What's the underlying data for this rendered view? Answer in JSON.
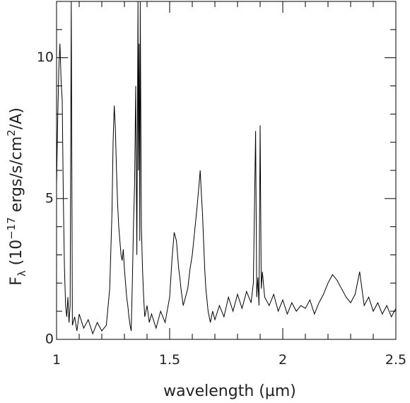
{
  "chart_data": {
    "type": "line",
    "xlabel": "wavelength (µm)",
    "ylabel_parts": {
      "f": "F",
      "lambda_sub": "λ",
      "open": " (10",
      "exp": "−17",
      "mid": " ergs/s/cm",
      "exp2": "2",
      "close": "/A)"
    },
    "xlim": [
      1.0,
      2.5
    ],
    "ylim": [
      0,
      12
    ],
    "x_ticks": [
      1,
      1.5,
      2,
      2.5
    ],
    "x_tick_labels": [
      "1",
      "1.5",
      "2",
      "2.5"
    ],
    "y_ticks": [
      0,
      5,
      10
    ],
    "y_tick_labels": [
      "0",
      "5",
      "10"
    ],
    "grid": false,
    "legend": "none",
    "line_color": "#000000",
    "series": [
      {
        "x": [
          1.0,
          1.005,
          1.01,
          1.015,
          1.02,
          1.025,
          1.03,
          1.035,
          1.04,
          1.045,
          1.05,
          1.055,
          1.06,
          1.065,
          1.07,
          1.08,
          1.09,
          1.1,
          1.12,
          1.14,
          1.16,
          1.18,
          1.2,
          1.22,
          1.235,
          1.245,
          1.25,
          1.255,
          1.26,
          1.265,
          1.27,
          1.275,
          1.28,
          1.285,
          1.29,
          1.295,
          1.3,
          1.305,
          1.31,
          1.315,
          1.32,
          1.325,
          1.33,
          1.335,
          1.34,
          1.345,
          1.35,
          1.355,
          1.36,
          1.362,
          1.365,
          1.368,
          1.37,
          1.375,
          1.38,
          1.385,
          1.39,
          1.4,
          1.41,
          1.42,
          1.44,
          1.46,
          1.48,
          1.5,
          1.51,
          1.52,
          1.53,
          1.535,
          1.54,
          1.545,
          1.55,
          1.56,
          1.57,
          1.58,
          1.59,
          1.6,
          1.61,
          1.62,
          1.63,
          1.635,
          1.64,
          1.645,
          1.65,
          1.655,
          1.66,
          1.67,
          1.68,
          1.69,
          1.7,
          1.72,
          1.74,
          1.76,
          1.78,
          1.8,
          1.82,
          1.84,
          1.86,
          1.87,
          1.88,
          1.885,
          1.89,
          1.895,
          1.9,
          1.905,
          1.91,
          1.92,
          1.94,
          1.96,
          1.98,
          2.0,
          2.02,
          2.04,
          2.06,
          2.08,
          2.1,
          2.12,
          2.14,
          2.16,
          2.18,
          2.2,
          2.22,
          2.24,
          2.26,
          2.28,
          2.3,
          2.32,
          2.34,
          2.36,
          2.38,
          2.4,
          2.42,
          2.44,
          2.46,
          2.48,
          2.5
        ],
        "y": [
          5.5,
          7.8,
          9.6,
          10.5,
          9.2,
          8.5,
          5.0,
          2.5,
          1.2,
          0.8,
          1.5,
          0.6,
          1.2,
          12.0,
          0.5,
          0.8,
          0.3,
          0.9,
          0.4,
          0.7,
          0.2,
          0.6,
          0.3,
          0.5,
          1.8,
          4.5,
          7.0,
          8.3,
          7.5,
          6.0,
          4.8,
          4.0,
          3.5,
          3.0,
          2.8,
          3.2,
          2.5,
          2.0,
          1.5,
          1.2,
          0.8,
          0.5,
          0.3,
          2.0,
          4.0,
          5.5,
          9.0,
          3.0,
          12.0,
          6.0,
          10.5,
          3.5,
          12.0,
          4.0,
          2.5,
          1.5,
          0.8,
          1.2,
          0.6,
          0.9,
          0.4,
          1.0,
          0.6,
          1.5,
          2.8,
          3.8,
          3.5,
          3.0,
          2.5,
          2.2,
          1.8,
          1.2,
          1.5,
          1.8,
          2.5,
          3.0,
          3.8,
          4.6,
          5.5,
          6.0,
          5.2,
          4.5,
          3.5,
          2.5,
          1.8,
          1.0,
          0.6,
          1.0,
          0.7,
          1.2,
          0.8,
          1.5,
          1.0,
          1.6,
          1.1,
          1.7,
          1.3,
          2.0,
          7.4,
          1.5,
          2.2,
          1.2,
          7.6,
          1.8,
          2.4,
          1.5,
          1.2,
          1.6,
          1.0,
          1.4,
          0.9,
          1.3,
          1.0,
          1.2,
          1.1,
          1.4,
          0.9,
          1.3,
          1.6,
          2.0,
          2.3,
          2.1,
          1.8,
          1.5,
          1.3,
          1.6,
          2.4,
          1.2,
          1.5,
          1.0,
          1.3,
          0.9,
          1.2,
          0.8,
          1.1
        ]
      }
    ]
  }
}
